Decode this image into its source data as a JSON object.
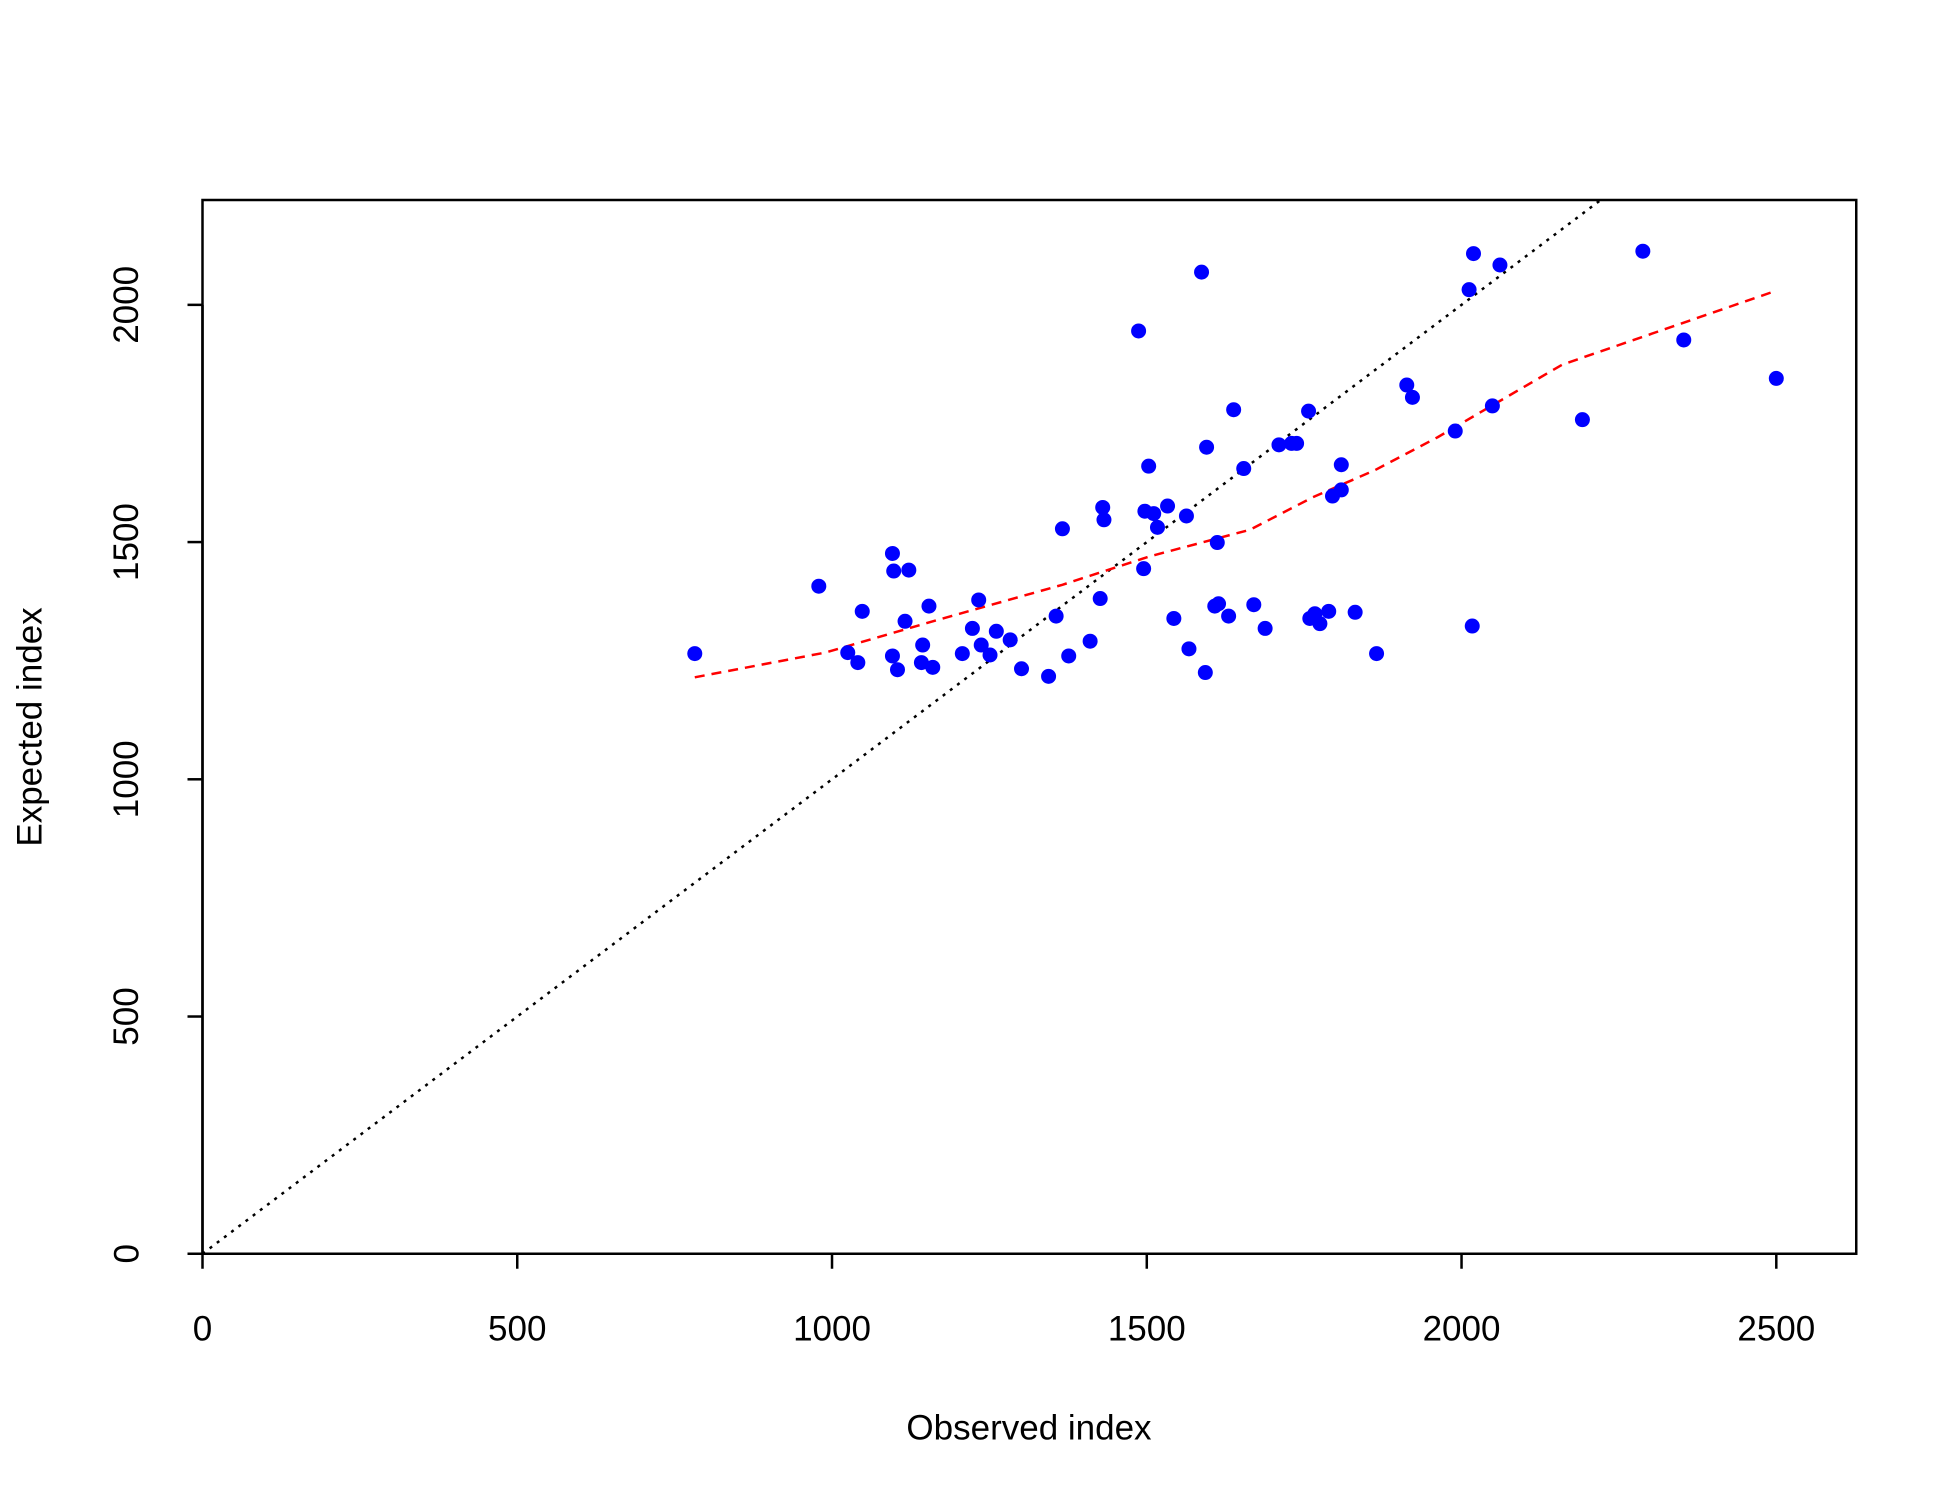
{
  "chart_data": {
    "type": "scatter",
    "x_label": "Observed index",
    "y_label": "Expected index",
    "color": "#0000ff",
    "x": [
      782,
      979,
      1025,
      1041,
      1048,
      1096,
      1098,
      1122,
      1096,
      1104,
      1116,
      1142,
      1144,
      1154,
      1160,
      1207,
      1223,
      1233,
      1237,
      1251,
      1261,
      1283,
      1301,
      1344,
      1356,
      1366,
      1376,
      1410,
      1426,
      1430,
      1432,
      1487,
      1495,
      1497,
      1503,
      1511,
      1517,
      1533,
      1543,
      1563,
      1567,
      1587,
      1593,
      1595,
      1608,
      1612,
      1614,
      1630,
      1638,
      1654,
      1670,
      1688,
      1710,
      1730,
      1738,
      1757,
      1759,
      1767,
      1775,
      1789,
      1795,
      1809,
      1809,
      1831,
      1865,
      1913,
      1922,
      1990,
      2012,
      2017,
      2019,
      2049,
      2061,
      2192,
      2288,
      2353,
      2500
    ],
    "values": [
      1265,
      1407,
      1267,
      1246,
      1354,
      1476,
      1439,
      1441,
      1260,
      1231,
      1333,
      1246,
      1283,
      1365,
      1236,
      1265,
      1318,
      1378,
      1283,
      1262,
      1312,
      1294,
      1233,
      1217,
      1344,
      1528,
      1260,
      1291,
      1381,
      1573,
      1547,
      1945,
      1444,
      1565,
      1660,
      1560,
      1531,
      1576,
      1339,
      1555,
      1275,
      2069,
      1225,
      1700,
      1365,
      1499,
      1370,
      1344,
      1779,
      1655,
      1368,
      1318,
      1705,
      1708,
      1708,
      1776,
      1339,
      1349,
      1328,
      1354,
      1597,
      1610,
      1663,
      1352,
      1265,
      1831,
      1805,
      1734,
      2032,
      1323,
      2108,
      1787,
      2084,
      1758,
      2113,
      1926,
      1845
    ],
    "smooth": {
      "color": "#ff0000",
      "x": [
        782,
        989,
        1168,
        1366,
        1505,
        1664,
        1763,
        1863,
        1962,
        2160,
        2498
      ],
      "values": [
        1215,
        1267,
        1336,
        1410,
        1470,
        1526,
        1594,
        1652,
        1721,
        1874,
        2029
      ]
    },
    "abline": {
      "intercept": 0,
      "slope": 1,
      "color": "#000000"
    },
    "xlim": [
      0,
      2627
    ],
    "ylim": [
      0,
      2221
    ],
    "xticks": [
      0,
      500,
      1000,
      1500,
      2000,
      2500
    ],
    "yticks": [
      0,
      500,
      1000,
      1500,
      2000
    ],
    "grid": false
  }
}
